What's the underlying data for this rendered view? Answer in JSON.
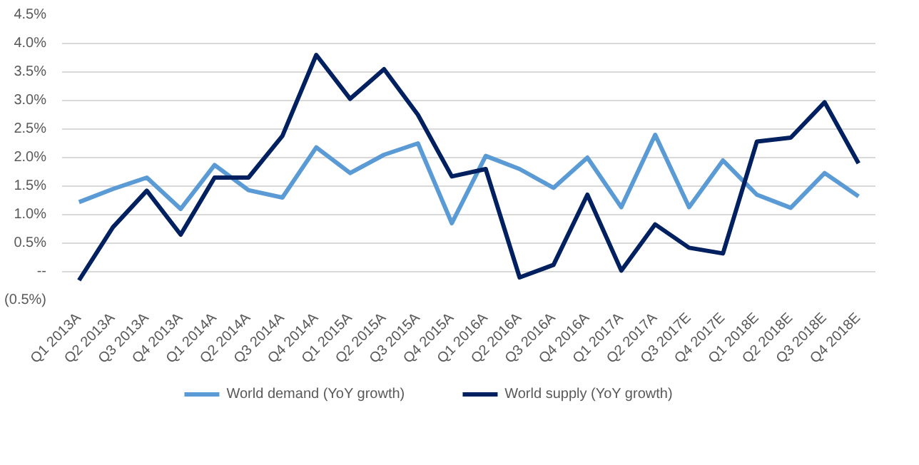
{
  "chart_data": {
    "type": "line",
    "categories": [
      "Q1 2013A",
      "Q2 2013A",
      "Q3 2013A",
      "Q4 2013A",
      "Q1 2014A",
      "Q2 2014A",
      "Q3 2014A",
      "Q4 2014A",
      "Q1 2015A",
      "Q2 2015A",
      "Q3 2015A",
      "Q4 2015A",
      "Q1 2016A",
      "Q2 2016A",
      "Q3 2016A",
      "Q4 2016A",
      "Q1 2017A",
      "Q2 2017A",
      "Q3 2017E",
      "Q4 2017E",
      "Q1 2018E",
      "Q2 2018E",
      "Q3 2018E",
      "Q4 2018E"
    ],
    "series": [
      {
        "name": "World demand (YoY growth)",
        "color": "#5b9bd5",
        "values": [
          1.22,
          1.45,
          1.65,
          1.1,
          1.87,
          1.43,
          1.3,
          2.18,
          1.73,
          2.05,
          2.25,
          0.85,
          2.03,
          1.8,
          1.47,
          2.0,
          1.13,
          2.4,
          1.13,
          1.95,
          1.35,
          1.12,
          1.73,
          1.32
        ]
      },
      {
        "name": "World supply (YoY growth)",
        "color": "#002060",
        "values": [
          -0.15,
          0.78,
          1.42,
          0.65,
          1.65,
          1.65,
          2.38,
          3.8,
          3.03,
          3.55,
          2.75,
          1.67,
          1.8,
          -0.1,
          0.12,
          1.35,
          0.02,
          0.83,
          0.42,
          0.32,
          2.28,
          2.35,
          2.97,
          1.9
        ]
      }
    ],
    "ylim": [
      -0.5,
      4.5
    ],
    "yticks": [
      {
        "value": -0.5,
        "label": "(0.5%)"
      },
      {
        "value": 0,
        "label": "--"
      },
      {
        "value": 0.5,
        "label": "0.5%"
      },
      {
        "value": 1,
        "label": "1.0%"
      },
      {
        "value": 1.5,
        "label": "1.5%"
      },
      {
        "value": 2,
        "label": "2.0%"
      },
      {
        "value": 2.5,
        "label": "2.5%"
      },
      {
        "value": 3,
        "label": "3.0%"
      },
      {
        "value": 3.5,
        "label": "3.5%"
      },
      {
        "value": 4,
        "label": "4.0%"
      },
      {
        "value": 4.5,
        "label": "4.5%"
      }
    ],
    "grid": "y",
    "legend": "bottom",
    "marker": "none",
    "line_style": "solid"
  }
}
